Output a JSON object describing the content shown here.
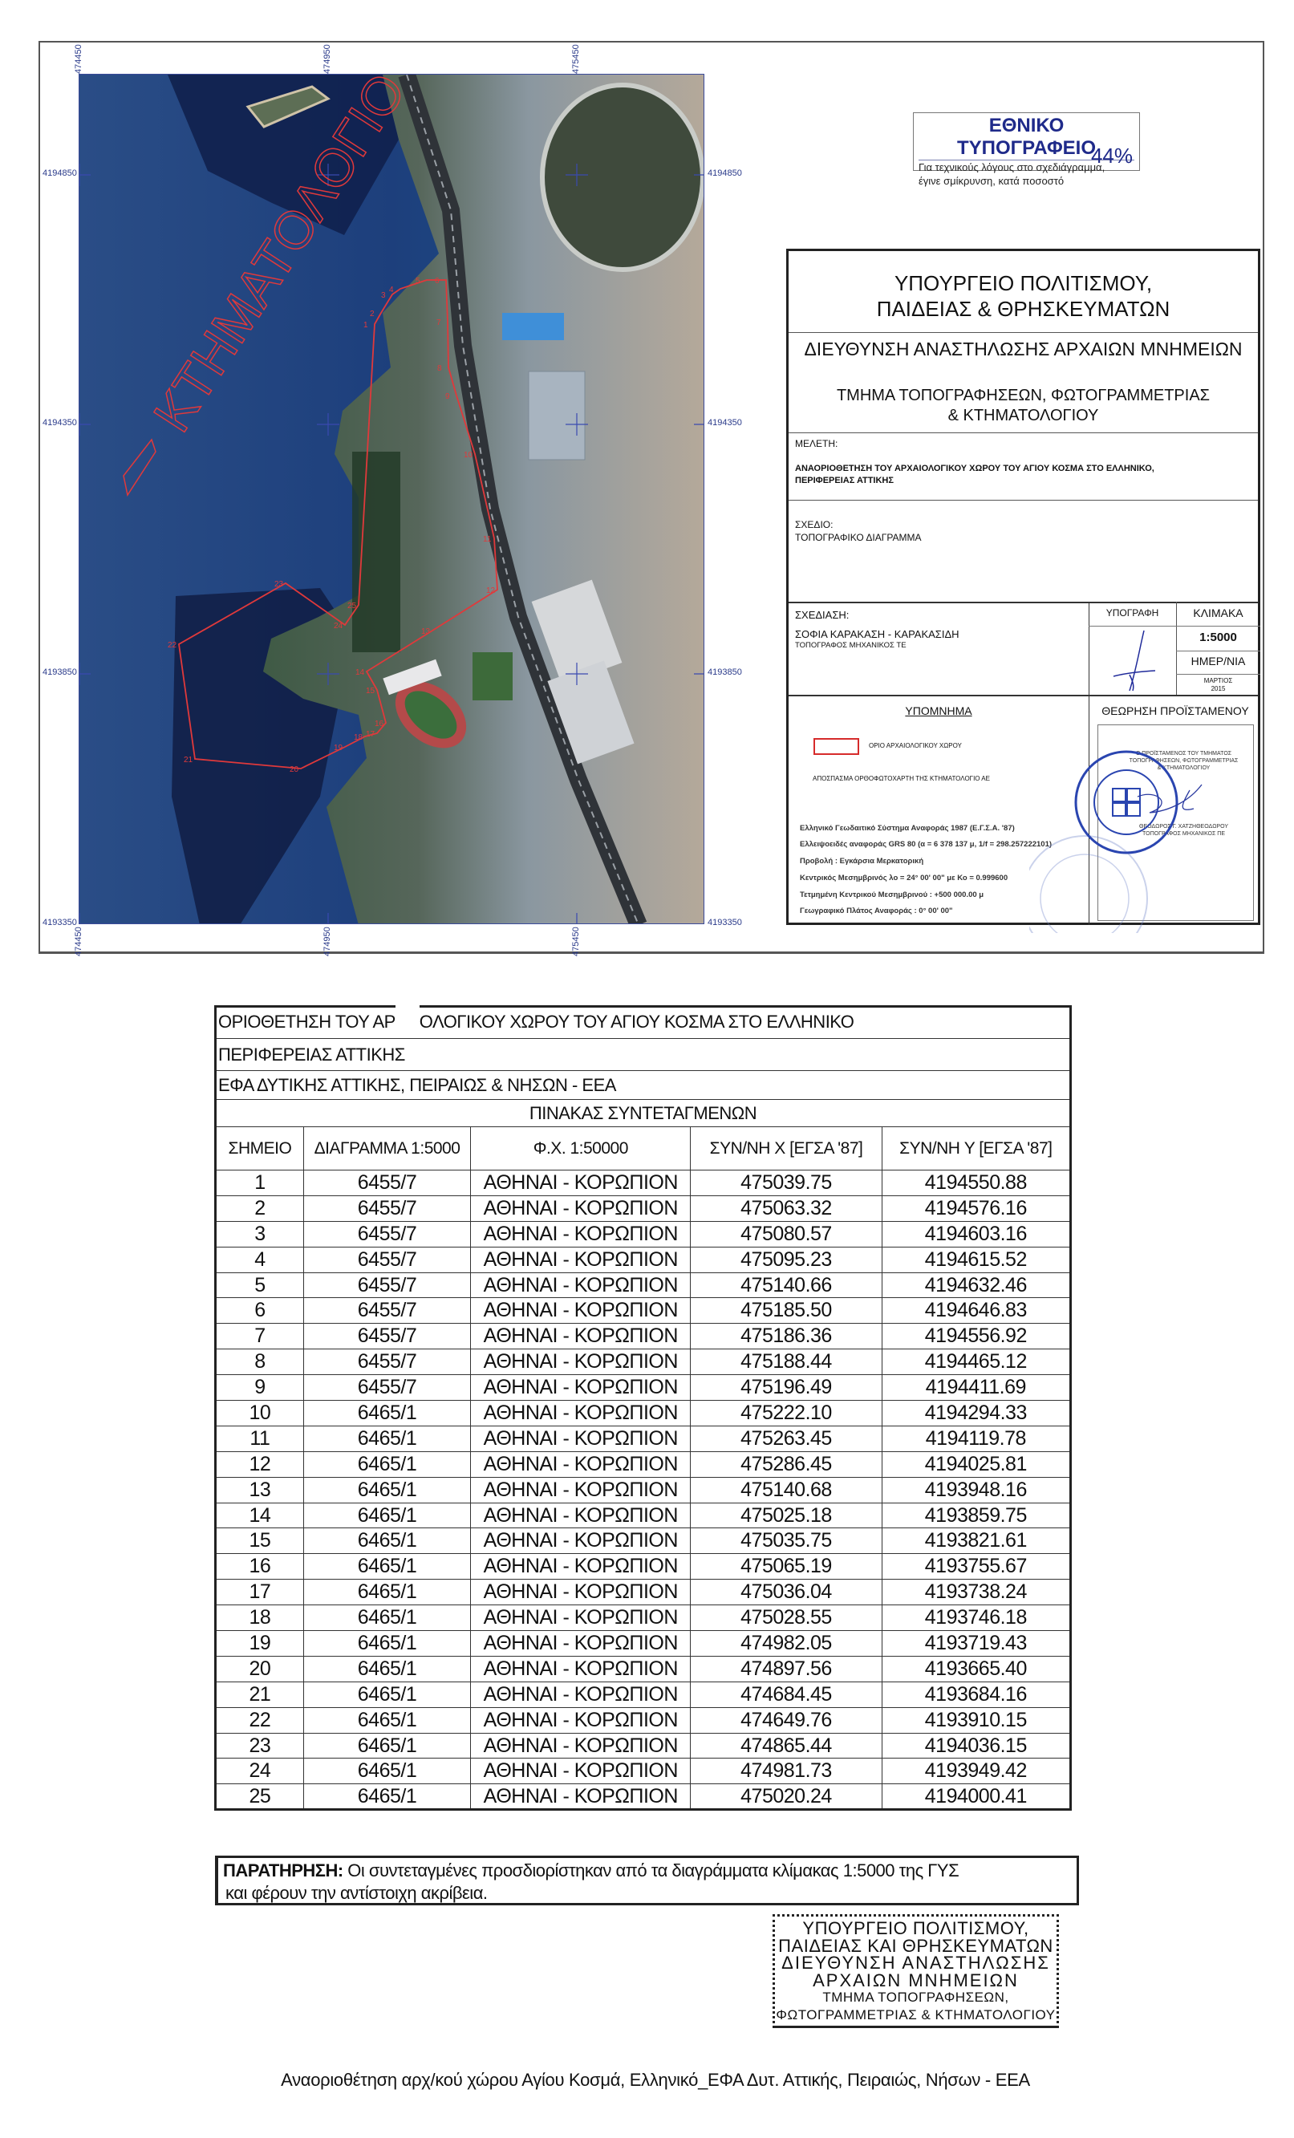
{
  "map": {
    "x_labels": [
      "474450",
      "474950",
      "475450"
    ],
    "y_labels": [
      "4194850",
      "4194350",
      "4193850",
      "4193350"
    ],
    "watermark": "ΚΤΗΜΑΤΟΛΟΓΙΟ",
    "boundary_color": "#e0393b"
  },
  "printing_notice": {
    "title": "ΕΘΝΙΚΟ ΤΥΠΟΓΡΑΦΕΙΟ",
    "line1": "Για τεχνικούς λόγους στο σχεδιάγραμμα,",
    "line2": "έγινε σμίκρυνση, κατά ποσοστό",
    "percent": "44%",
    "color": "#1f2a8a"
  },
  "title_block": {
    "ministry_1": "ΥΠΟΥΡΓΕΙΟ ΠΟΛΙΤΙΣΜΟΥ,",
    "ministry_2": "ΠΑΙΔΕΙΑΣ & ΘΡΗΣΚΕΥΜΑΤΩΝ",
    "directorate": "ΔΙΕΥΘΥΝΣΗ ΑΝΑΣΤΗΛΩΣΗΣ ΑΡΧΑΙΩΝ ΜΝΗΜΕΙΩΝ",
    "department_1": "ΤΜΗΜΑ ΤΟΠΟΓΡΑΦΗΣΕΩΝ, ΦΩΤΟΓΡΑΜΜΕΤΡΙΑΣ",
    "department_2": "& ΚΤΗΜΑΤΟΛΟΓΙΟΥ",
    "study_label": "ΜΕΛΕΤΗ:",
    "study_1": "ΑΝΑΟΡΙΟΘΕΤΗΣΗ ΤΟΥ ΑΡΧΑΙΟΛΟΓΙΚΟΥ ΧΩΡΟΥ ΤΟΥ ΑΓΙΟΥ ΚΟΣΜΑ ΣΤΟ ΕΛΛΗΝΙΚΟ,",
    "study_2": "ΠΕΡΙΦΕΡΕΙΑΣ ΑΤΤΙΚΗΣ",
    "drawing_label": "ΣΧΕΔΙΟ:",
    "drawing": "ΤΟΠΟΓΡΑΦΙΚΟ ΔΙΑΓΡΑΜΜΑ",
    "design_label": "ΣΧΕΔΙΑΣΗ:",
    "designer": "ΣΟΦΙΑ ΚΑΡΑΚΑΣΗ - ΚΑΡΑΚΑΣΙΔΗ",
    "designer_title": "ΤΟΠΟΓΡΑΦΟΣ ΜΗΧΑΝΙΚΟΣ ΤΕ",
    "signature_label": "ΥΠΟΓΡΑΦΗ",
    "scale_label": "ΚΛΙΜΑΚΑ",
    "scale": "1:5000",
    "date_label": "ΗΜΕΡ/ΝΙΑ",
    "date_month": "ΜΑΡΤΙΟΣ",
    "date_year": "2015",
    "legend_title": "ΥΠΟΜΝΗΜΑ",
    "legend_boundary": "ΟΡΙΟ ΑΡΧΑΙΟΛΟΓΙΚΟΥ ΧΩΡΟΥ",
    "legend_source": "ΑΠΟΣΠΑΣΜΑ ΟΡΘΟΦΩΤΟΧΑΡΤΗ ΤΗΣ ΚΤΗΜΑΤΟΛΟΓΙΟ ΑΕ",
    "geodetic": [
      "Ελληνικό Γεωδαιτικό Σύστημα Αναφοράς 1987 (Ε.Γ.Σ.Α. '87)",
      "Ελλειψοειδές αναφοράς GRS 80 (α = 6 378 137 μ, 1/f = 298.257222101)",
      "Προβολή : Εγκάρσια Μερκατορική",
      "Κεντρικός Μεσημβρινός λο = 24° 00' 00\" με Κο = 0.999600",
      "Τετμημένη Κεντρικού Μεσημβρινού : +500 000.00 μ",
      "Γεωγραφικό Πλάτος Αναφοράς : 0° 00' 00\""
    ],
    "approval_label": "ΘΕΩΡΗΣΗ ΠΡΟΪΣΤΑΜΕΝΟΥ",
    "head_1": "Ο ΠΡΟΪΣΤΑΜΕΝΟΣ ΤΟΥ ΤΜΗΜΑΤΟΣ",
    "head_2": "ΤΟΠΟΓΡΑΦΗΣΕΩΝ, ΦΩΤΟΓΡΑΜΜΕΤΡΙΑΣ",
    "head_3": "& ΚΤΗΜΑΤΟΛΟΓΙΟΥ",
    "head_name": "ΘΕΟΔΩΡΟΣ Γ. ΧΑΤΖΗΘΕΟΔΩΡΟΥ",
    "head_title": "ΤΟΠΟΓΡΑΦΟΣ ΜΗΧΑΝΙΚΟΣ ΠΕ",
    "seal_text": "ΕΛΛΗΝΙΚΗ ΔΗΜΟΚΡΑΤΙΑ",
    "seal_color": "#2a45b0"
  },
  "coords_table": {
    "title_part1": "ΟΡΙΟΘΕΤΗΣΗ ΤΟΥ ΑΡ",
    "title_part2": "ΟΛΟΓΙΚΟΥ ΧΩΡΟΥ ΤΟΥ ΑΓΙΟΥ ΚΟΣΜΑ ΣΤΟ ΕΛΛΗΝΙΚΟ",
    "region": "ΠΕΡΙΦΕΡΕΙΑΣ ΑΤΤΙΚΗΣ",
    "ephorate": "ΕΦΑ ΔΥΤΙΚΗΣ ΑΤΤΙΚΗΣ, ΠΕΙΡΑΙΩΣ & ΝΗΣΩΝ - ΕΕΑ",
    "caption": "ΠΙΝΑΚΑΣ ΣΥΝΤΕΤΑΓΜΕΝΩΝ",
    "headers": [
      "ΣΗΜΕΙΟ",
      "ΔΙΑΓΡΑΜΜΑ 1:5000",
      "Φ.Χ. 1:50000",
      "ΣΥΝ/ΝΗ  X [ΕΓΣΑ '87]",
      "ΣΥΝ/ΝΗ Y [ΕΓΣΑ '87]"
    ],
    "rows": [
      [
        "1",
        "6455/7",
        "ΑΘΗΝΑΙ - ΚΟΡΩΠΙΟΝ",
        "475039.75",
        "4194550.88"
      ],
      [
        "2",
        "6455/7",
        "ΑΘΗΝΑΙ - ΚΟΡΩΠΙΟΝ",
        "475063.32",
        "4194576.16"
      ],
      [
        "3",
        "6455/7",
        "ΑΘΗΝΑΙ - ΚΟΡΩΠΙΟΝ",
        "475080.57",
        "4194603.16"
      ],
      [
        "4",
        "6455/7",
        "ΑΘΗΝΑΙ - ΚΟΡΩΠΙΟΝ",
        "475095.23",
        "4194615.52"
      ],
      [
        "5",
        "6455/7",
        "ΑΘΗΝΑΙ - ΚΟΡΩΠΙΟΝ",
        "475140.66",
        "4194632.46"
      ],
      [
        "6",
        "6455/7",
        "ΑΘΗΝΑΙ - ΚΟΡΩΠΙΟΝ",
        "475185.50",
        "4194646.83"
      ],
      [
        "7",
        "6455/7",
        "ΑΘΗΝΑΙ - ΚΟΡΩΠΙΟΝ",
        "475186.36",
        "4194556.92"
      ],
      [
        "8",
        "6455/7",
        "ΑΘΗΝΑΙ - ΚΟΡΩΠΙΟΝ",
        "475188.44",
        "4194465.12"
      ],
      [
        "9",
        "6455/7",
        "ΑΘΗΝΑΙ - ΚΟΡΩΠΙΟΝ",
        "475196.49",
        "4194411.69"
      ],
      [
        "10",
        "6465/1",
        "ΑΘΗΝΑΙ - ΚΟΡΩΠΙΟΝ",
        "475222.10",
        "4194294.33"
      ],
      [
        "11",
        "6465/1",
        "ΑΘΗΝΑΙ - ΚΟΡΩΠΙΟΝ",
        "475263.45",
        "4194119.78"
      ],
      [
        "12",
        "6465/1",
        "ΑΘΗΝΑΙ - ΚΟΡΩΠΙΟΝ",
        "475286.45",
        "4194025.81"
      ],
      [
        "13",
        "6465/1",
        "ΑΘΗΝΑΙ - ΚΟΡΩΠΙΟΝ",
        "475140.68",
        "4193948.16"
      ],
      [
        "14",
        "6465/1",
        "ΑΘΗΝΑΙ - ΚΟΡΩΠΙΟΝ",
        "475025.18",
        "4193859.75"
      ],
      [
        "15",
        "6465/1",
        "ΑΘΗΝΑΙ - ΚΟΡΩΠΙΟΝ",
        "475035.75",
        "4193821.61"
      ],
      [
        "16",
        "6465/1",
        "ΑΘΗΝΑΙ - ΚΟΡΩΠΙΟΝ",
        "475065.19",
        "4193755.67"
      ],
      [
        "17",
        "6465/1",
        "ΑΘΗΝΑΙ - ΚΟΡΩΠΙΟΝ",
        "475036.04",
        "4193738.24"
      ],
      [
        "18",
        "6465/1",
        "ΑΘΗΝΑΙ - ΚΟΡΩΠΙΟΝ",
        "475028.55",
        "4193746.18"
      ],
      [
        "19",
        "6465/1",
        "ΑΘΗΝΑΙ - ΚΟΡΩΠΙΟΝ",
        "474982.05",
        "4193719.43"
      ],
      [
        "20",
        "6465/1",
        "ΑΘΗΝΑΙ - ΚΟΡΩΠΙΟΝ",
        "474897.56",
        "4193665.40"
      ],
      [
        "21",
        "6465/1",
        "ΑΘΗΝΑΙ - ΚΟΡΩΠΙΟΝ",
        "474684.45",
        "4193684.16"
      ],
      [
        "22",
        "6465/1",
        "ΑΘΗΝΑΙ - ΚΟΡΩΠΙΟΝ",
        "474649.76",
        "4193910.15"
      ],
      [
        "23",
        "6465/1",
        "ΑΘΗΝΑΙ - ΚΟΡΩΠΙΟΝ",
        "474865.44",
        "4194036.15"
      ],
      [
        "24",
        "6465/1",
        "ΑΘΗΝΑΙ - ΚΟΡΩΠΙΟΝ",
        "474981.73",
        "4193949.42"
      ],
      [
        "25",
        "6465/1",
        "ΑΘΗΝΑΙ - ΚΟΡΩΠΙΟΝ",
        "475020.24",
        "4194000.41"
      ]
    ]
  },
  "note": {
    "label": "ΠΑΡΑΤΗΡΗΣΗ:",
    "text1": " Οι συντεταγμένες προσδιορίστηκαν από τα διαγράμματα κλίμακας 1:5000 της ΓΥΣ",
    "text2": "και φέρουν την αντίστοιχη ακρίβεια."
  },
  "stamp": {
    "lines": [
      "ΥΠΟΥΡΓΕΙΟ ΠΟΛΙΤΙΣΜΟΥ,",
      "ΠΑΙΔΕΙΑΣ ΚΑΙ ΘΡΗΣΚΕΥΜΑΤΩΝ",
      "ΔΙΕΥΘΥΝΣΗ ΑΝΑΣΤΗΛΩΣΗΣ",
      "ΑΡΧΑΙΩΝ ΜΝΗΜΕΙΩΝ",
      "ΤΜΗΜΑ ΤΟΠΟΓΡΑΦΗΣΕΩΝ,",
      "ΦΩΤΟΓΡΑΜΜΕΤΡΙΑΣ & ΚΤΗΜΑΤΟΛΟΓΙΟΥ"
    ]
  },
  "footer": "Αναοριοθέτηση αρχ/κού χώρου Αγίου Κοσμά, Ελληνικό_ΕΦΑ Δυτ. Αττικής, Πειραιώς, Νήσων - ΕΕΑ"
}
